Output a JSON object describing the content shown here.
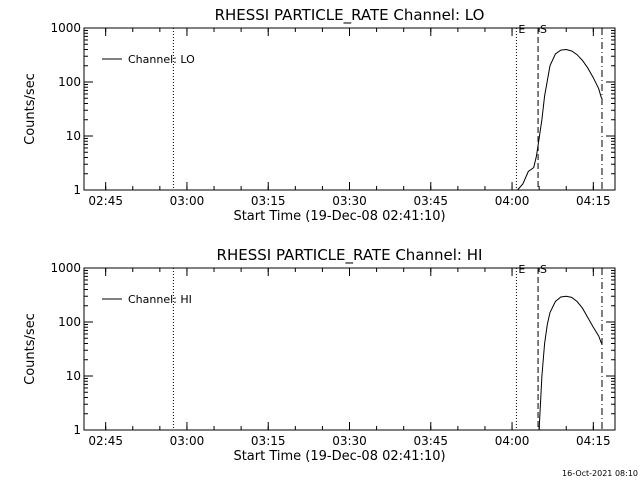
{
  "chart_data": [
    {
      "type": "line",
      "title": "RHESSI PARTICLE_RATE Channel: LO",
      "xlabel": "Start Time (19-Dec-08 02:41:10)",
      "ylabel": "Counts/sec",
      "xlim": [
        "02:41",
        "04:19"
      ],
      "ylim": [
        1,
        1000
      ],
      "yscale": "log",
      "x_ticks": [
        "02:45",
        "03:00",
        "03:15",
        "03:30",
        "03:45",
        "04:00",
        "04:15"
      ],
      "y_ticks": [
        "1",
        "10",
        "100",
        "1000"
      ],
      "legend": {
        "label": "Channel: LO",
        "placement": "top-left"
      },
      "series": [
        {
          "name": "Channel: LO",
          "points": [
            [
              "04:01",
              0.9
            ],
            [
              "04:02",
              1.3
            ],
            [
              "04:03",
              2.2
            ],
            [
              "04:04",
              2.6
            ],
            [
              "04:04.5",
              4.2
            ],
            [
              "04:05",
              9
            ],
            [
              "04:05.5",
              20
            ],
            [
              "04:06",
              55
            ],
            [
              "04:07",
              200
            ],
            [
              "04:08",
              330
            ],
            [
              "04:09",
              390
            ],
            [
              "04:10",
              400
            ],
            [
              "04:11",
              375
            ],
            [
              "04:12",
              320
            ],
            [
              "04:13",
              250
            ],
            [
              "04:14",
              180
            ],
            [
              "04:15",
              120
            ],
            [
              "04:16",
              75
            ],
            [
              "04:16.5",
              50
            ]
          ]
        }
      ],
      "vlines": [
        {
          "x": "02:57.5",
          "style": "dotted"
        },
        {
          "x": "04:00.8",
          "style": "dotted",
          "label": "E"
        },
        {
          "x": "04:04.8",
          "style": "dashed",
          "label": "S"
        },
        {
          "x": "04:16.6",
          "style": "dashdot"
        }
      ]
    },
    {
      "type": "line",
      "title": "RHESSI PARTICLE_RATE Channel: HI",
      "xlabel": "Start Time (19-Dec-08 02:41:10)",
      "ylabel": "Counts/sec",
      "xlim": [
        "02:41",
        "04:19"
      ],
      "ylim": [
        1,
        1000
      ],
      "yscale": "log",
      "x_ticks": [
        "02:45",
        "03:00",
        "03:15",
        "03:30",
        "03:45",
        "04:00",
        "04:15"
      ],
      "y_ticks": [
        "1",
        "10",
        "100",
        "1000"
      ],
      "legend": {
        "label": "Channel: HI",
        "placement": "top-left"
      },
      "series": [
        {
          "name": "Channel: HI",
          "points": [
            [
              "04:05",
              0.9
            ],
            [
              "04:05.5",
              10
            ],
            [
              "04:06",
              40
            ],
            [
              "04:06.5",
              90
            ],
            [
              "04:07",
              150
            ],
            [
              "04:08",
              240
            ],
            [
              "04:09",
              290
            ],
            [
              "04:10",
              300
            ],
            [
              "04:11",
              285
            ],
            [
              "04:12",
              240
            ],
            [
              "04:13",
              180
            ],
            [
              "04:14",
              120
            ],
            [
              "04:15",
              80
            ],
            [
              "04:16",
              55
            ],
            [
              "04:16.5",
              40
            ]
          ]
        }
      ],
      "vlines": [
        {
          "x": "02:57.5",
          "style": "dotted"
        },
        {
          "x": "04:00.8",
          "style": "dotted",
          "label": "E"
        },
        {
          "x": "04:04.8",
          "style": "dashed",
          "label": "S"
        },
        {
          "x": "04:16.6",
          "style": "dashdot"
        }
      ]
    }
  ],
  "footer": {
    "timestamp": "16-Oct-2021 08:10"
  }
}
